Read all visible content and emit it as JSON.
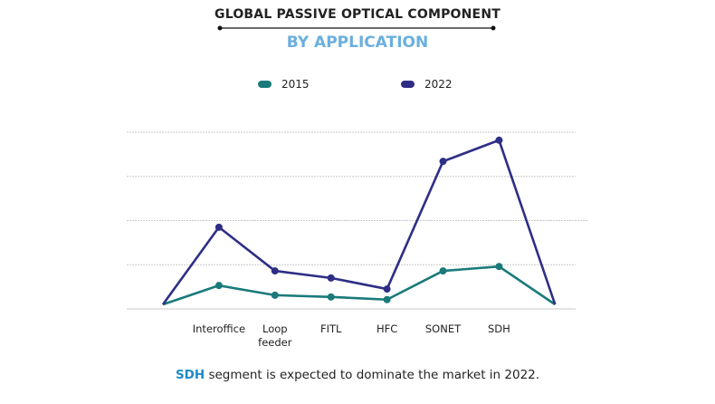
{
  "chart_data": {
    "type": "line",
    "title": "GLOBAL PASSIVE OPTICAL COMPONENT",
    "subtitle": "BY APPLICATION",
    "categories": [
      "",
      "Interoffice",
      "Loop feeder",
      "FITL",
      "HFC",
      "SONET",
      "SDH",
      ""
    ],
    "series": [
      {
        "name": "2015",
        "color": "#1a7a7a",
        "values": [
          0.1,
          0.53,
          0.31,
          0.27,
          0.21,
          0.86,
          0.96,
          0.1
        ]
      },
      {
        "name": "2022",
        "color": "#2e2e86",
        "values": [
          0.1,
          1.85,
          0.86,
          0.7,
          0.45,
          3.34,
          3.82,
          0.1
        ]
      }
    ],
    "ylim": [
      0,
      4
    ],
    "grid": true,
    "legend_position": "top",
    "footnote_highlight": "SDH",
    "footnote_rest": " segment is expected to dominate the market in 2022."
  }
}
